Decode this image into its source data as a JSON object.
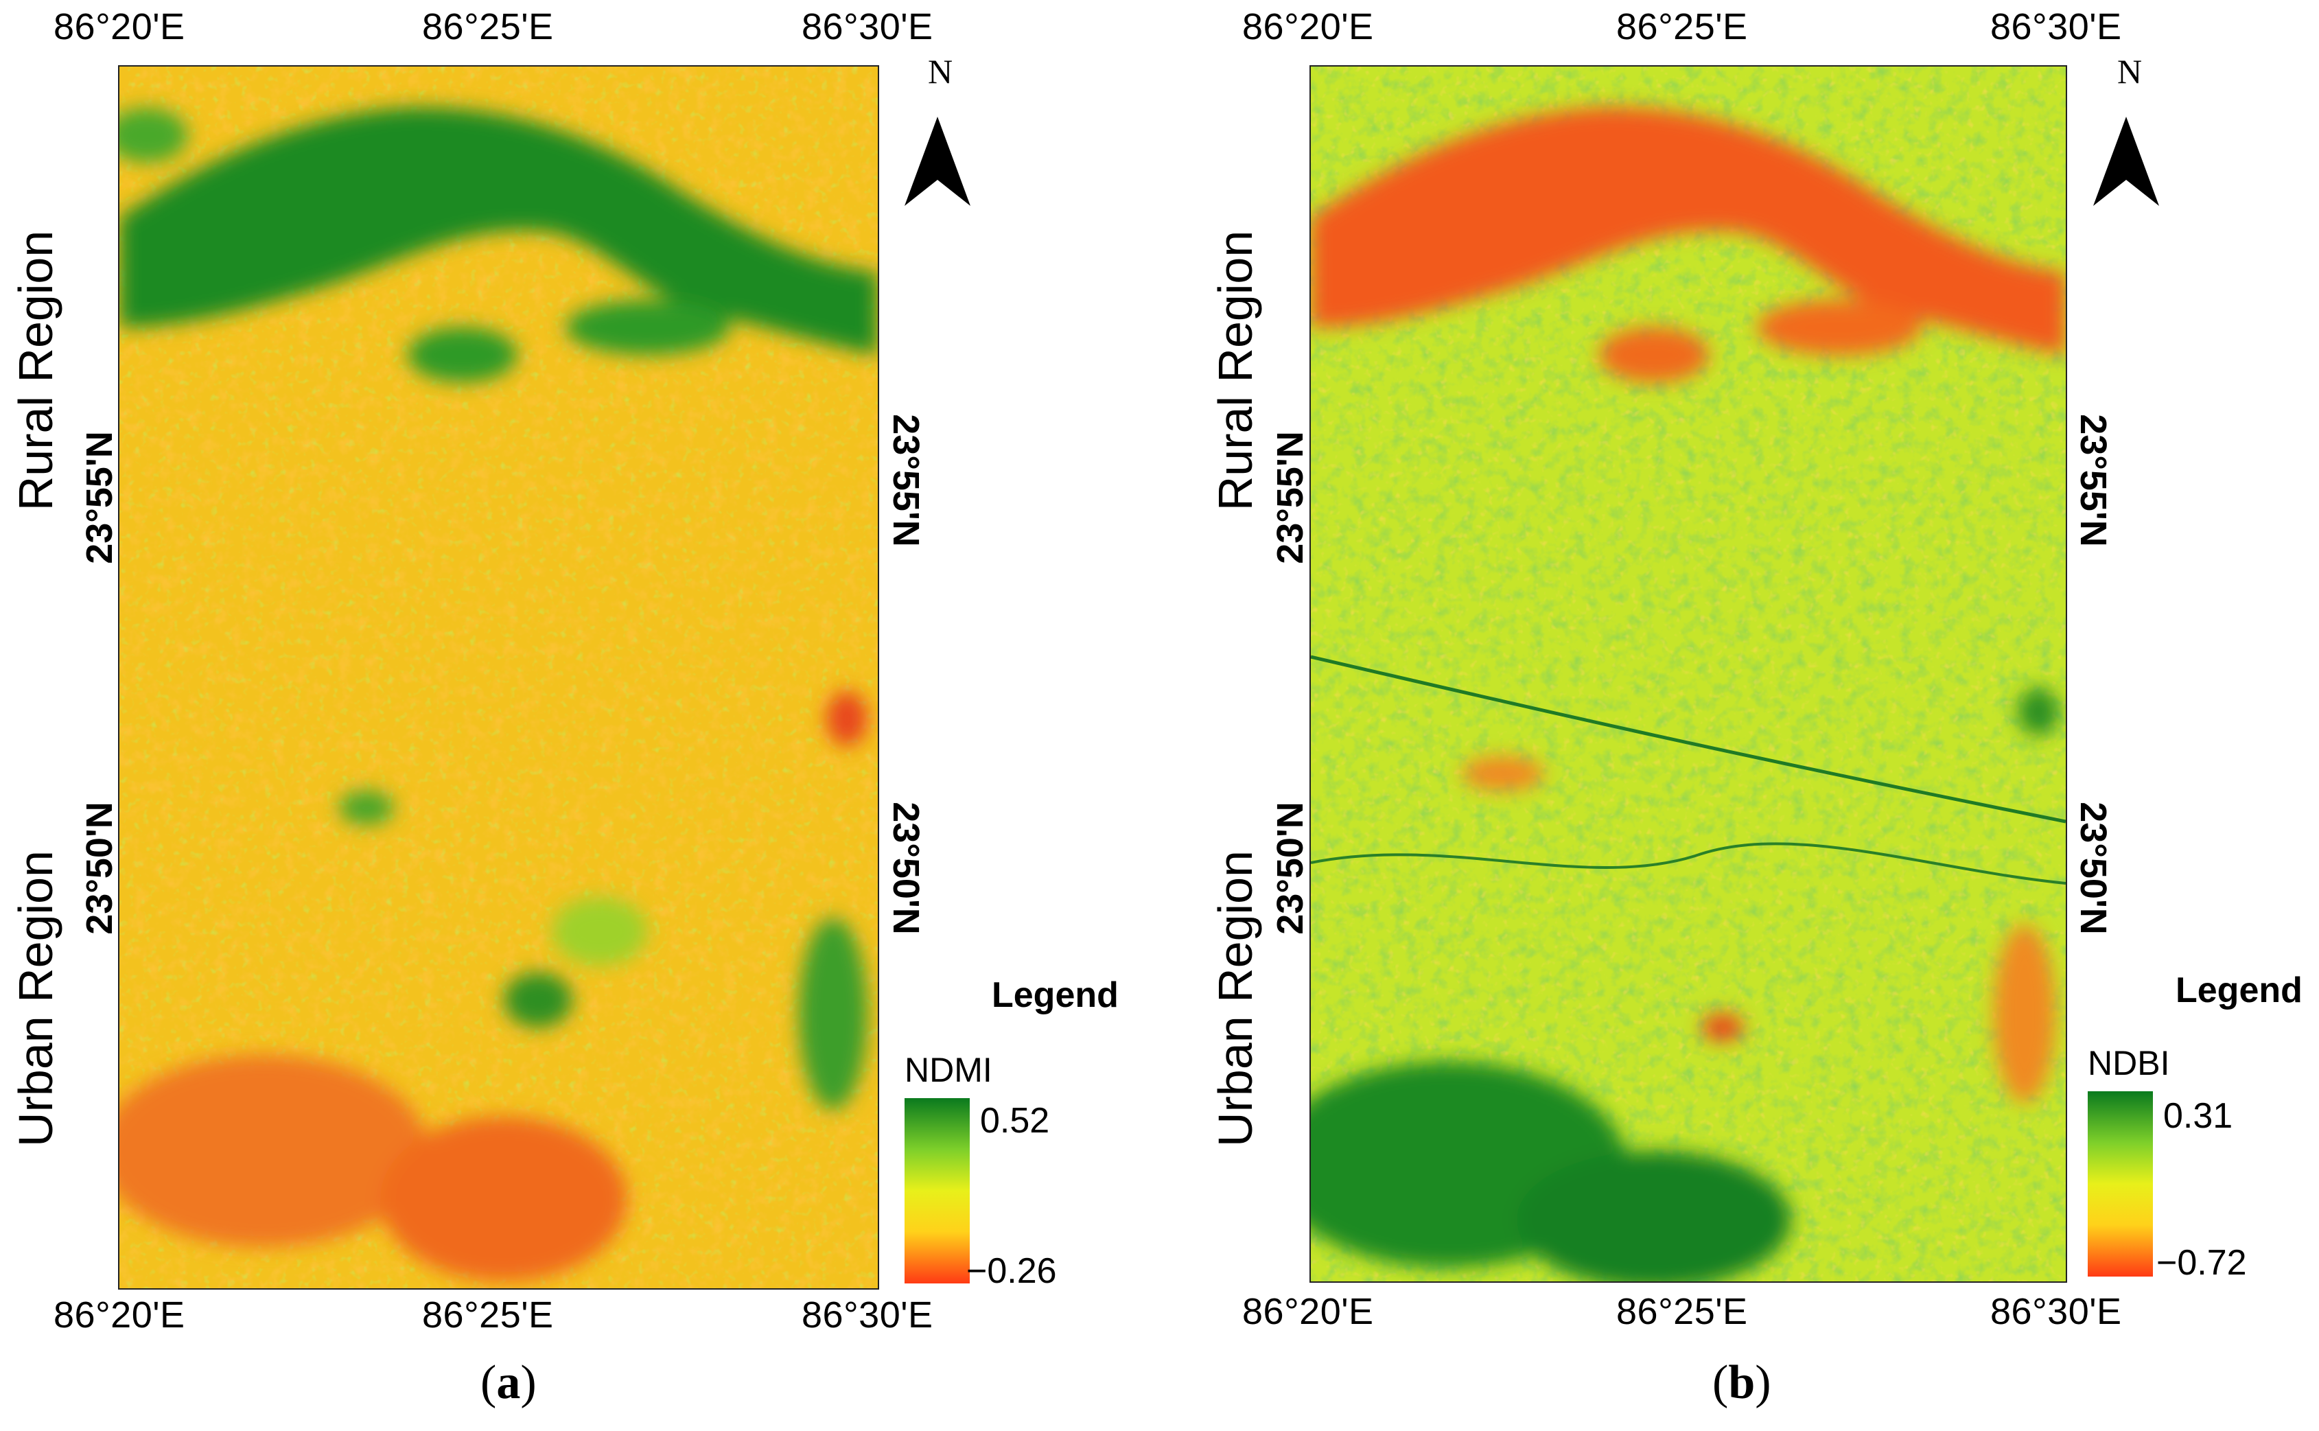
{
  "panels": [
    {
      "id": "a",
      "caption_open": "(",
      "caption_letter": "a",
      "caption_close": ")",
      "lon_ticks": [
        "86°20'E",
        "86°25'E",
        "86°30'E"
      ],
      "lat_ticks": [
        "23°55'N",
        "23°50'N"
      ],
      "regions": [
        "Rural Region",
        "Urban Region"
      ],
      "north_label": "N",
      "legend": {
        "title": "Legend",
        "variable": "NDMI",
        "max": "0.52",
        "min": "−0.26",
        "colors": [
          "#0a7a1e",
          "#7fd02a",
          "#e8f01a",
          "#ffd21a",
          "#ff3a14"
        ]
      }
    },
    {
      "id": "b",
      "caption_open": "(",
      "caption_letter": "b",
      "caption_close": ")",
      "lon_ticks": [
        "86°20'E",
        "86°25'E",
        "86°30'E"
      ],
      "lat_ticks": [
        "23°55'N",
        "23°50'N"
      ],
      "regions": [
        "Rural Region",
        "Urban Region"
      ],
      "north_label": "N",
      "legend": {
        "title": "Legend",
        "variable": "NDBI",
        "max": "0.31",
        "min": "−0.72",
        "colors": [
          "#0a7a1e",
          "#7fd02a",
          "#e8f01a",
          "#ffd21a",
          "#ff3a14"
        ]
      }
    }
  ]
}
